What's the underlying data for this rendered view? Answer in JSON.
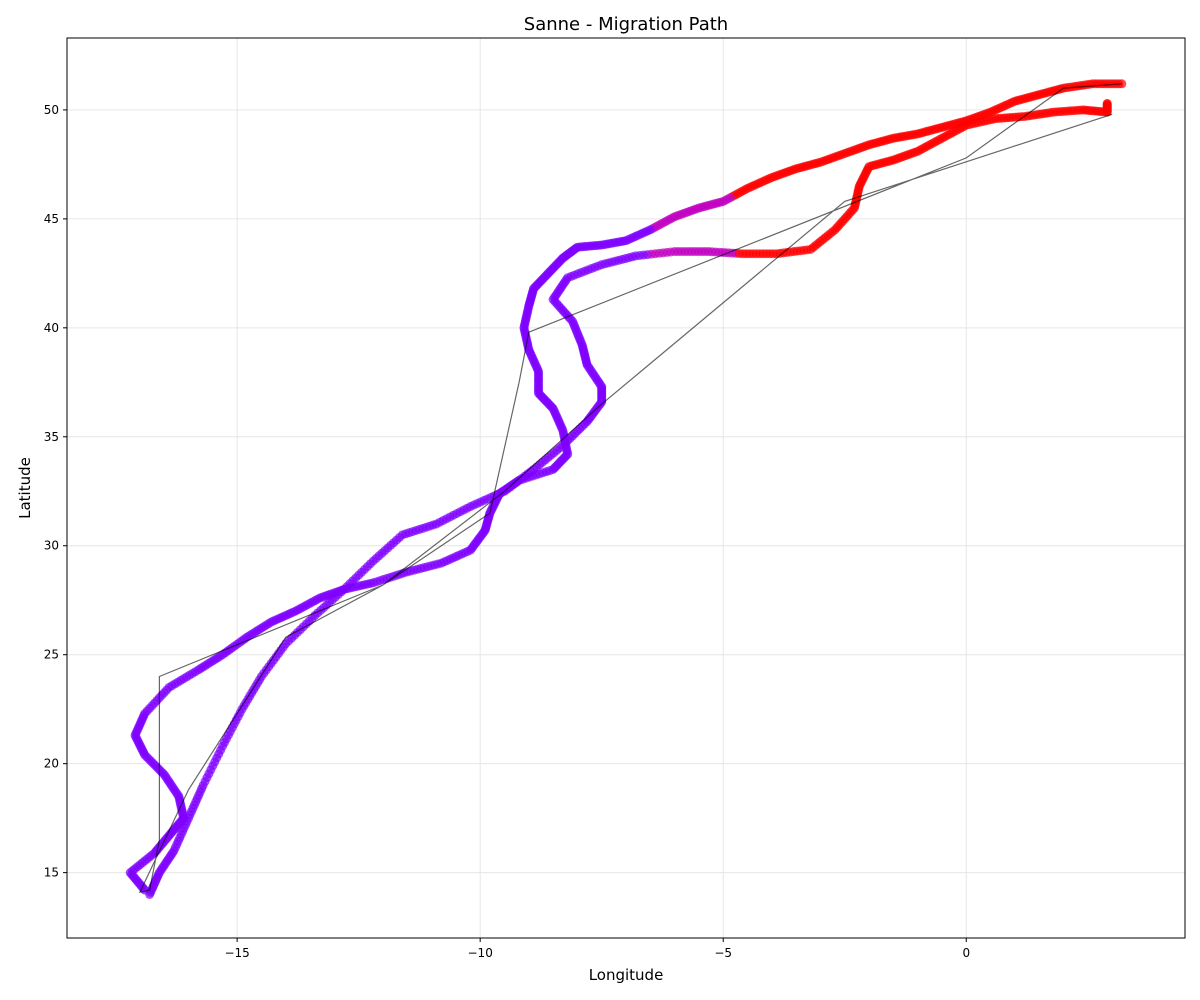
{
  "chart_data": {
    "type": "scatter",
    "title": "Sanne - Migration Path",
    "xlabel": "Longitude",
    "ylabel": "Latitude",
    "xlim": [
      -18.5,
      4.5
    ],
    "ylim": [
      12,
      53.3
    ],
    "xticks": [
      -15,
      -10,
      -5,
      0
    ],
    "yticks": [
      15,
      20,
      25,
      30,
      35,
      40,
      45,
      50
    ],
    "xtick_labels": [
      "−15",
      "−10",
      "−5",
      "0"
    ],
    "ytick_labels": [
      "15",
      "20",
      "25",
      "30",
      "35",
      "40",
      "45",
      "50"
    ],
    "grid": true,
    "legend": "none",
    "colors": {
      "north_points": "#ff0000",
      "south_points": "#7f00ff",
      "connecting_line": "#000000"
    },
    "series": [
      {
        "values_xy": [
          [
            3.2,
            51.2
          ],
          [
            2.6,
            51.2
          ],
          [
            2.0,
            51.0
          ],
          [
            1.5,
            50.7
          ],
          [
            1.0,
            50.4
          ],
          [
            0.5,
            49.9
          ],
          [
            0.0,
            49.5
          ],
          [
            -0.5,
            49.2
          ],
          [
            -1.0,
            48.9
          ],
          [
            -1.5,
            48.7
          ],
          [
            -2.0,
            48.4
          ],
          [
            -2.5,
            48.0
          ],
          [
            -3.0,
            47.6
          ],
          [
            -3.5,
            47.3
          ],
          [
            -4.0,
            46.9
          ],
          [
            -4.5,
            46.4
          ],
          [
            -5.0,
            45.8
          ],
          [
            -5.5,
            45.5
          ],
          [
            -6.0,
            45.1
          ],
          [
            -6.5,
            44.5
          ],
          [
            -7.0,
            44.0
          ],
          [
            -7.5,
            43.8
          ],
          [
            -8.0,
            43.7
          ],
          [
            -8.3,
            43.2
          ],
          [
            -8.6,
            42.5
          ],
          [
            -8.9,
            41.8
          ],
          [
            -9.0,
            41.0
          ],
          [
            -9.1,
            40.0
          ],
          [
            -9.0,
            39.0
          ],
          [
            -8.8,
            38.0
          ],
          [
            -8.8,
            37.0
          ],
          [
            -8.5,
            36.3
          ],
          [
            -8.3,
            35.3
          ],
          [
            -8.2,
            34.2
          ],
          [
            -8.5,
            33.5
          ],
          [
            -9.2,
            33.0
          ],
          [
            -9.6,
            32.4
          ],
          [
            -9.8,
            31.5
          ],
          [
            -9.9,
            30.7
          ],
          [
            -10.2,
            29.8
          ],
          [
            -10.8,
            29.2
          ],
          [
            -11.5,
            28.8
          ],
          [
            -12.2,
            28.3
          ],
          [
            -12.8,
            28.0
          ],
          [
            -13.3,
            27.6
          ],
          [
            -13.8,
            27.0
          ],
          [
            -14.3,
            26.5
          ],
          [
            -14.8,
            25.8
          ],
          [
            -15.3,
            25.0
          ],
          [
            -15.8,
            24.3
          ],
          [
            -16.4,
            23.5
          ],
          [
            -16.9,
            22.3
          ],
          [
            -17.1,
            21.3
          ],
          [
            -16.9,
            20.4
          ],
          [
            -16.5,
            19.5
          ],
          [
            -16.2,
            18.5
          ],
          [
            -16.1,
            17.5
          ],
          [
            -16.4,
            16.7
          ],
          [
            -16.7,
            15.9
          ],
          [
            -17.2,
            15.0
          ],
          [
            -16.9,
            14.2
          ]
        ]
      },
      {
        "values_xy": [
          [
            -16.8,
            14.0
          ],
          [
            -16.6,
            15.0
          ],
          [
            -16.3,
            16.0
          ],
          [
            -16.0,
            17.5
          ],
          [
            -15.7,
            19.0
          ],
          [
            -15.3,
            20.8
          ],
          [
            -14.9,
            22.5
          ],
          [
            -14.5,
            24.0
          ],
          [
            -14.0,
            25.5
          ],
          [
            -13.4,
            26.8
          ],
          [
            -12.8,
            28.0
          ],
          [
            -12.2,
            29.3
          ],
          [
            -11.6,
            30.5
          ],
          [
            -10.9,
            31.0
          ],
          [
            -10.2,
            31.8
          ],
          [
            -9.5,
            32.5
          ],
          [
            -8.9,
            33.5
          ],
          [
            -8.3,
            34.6
          ],
          [
            -7.8,
            35.7
          ],
          [
            -7.5,
            36.6
          ],
          [
            -7.5,
            37.3
          ],
          [
            -7.8,
            38.3
          ],
          [
            -7.9,
            39.2
          ],
          [
            -8.1,
            40.3
          ],
          [
            -8.5,
            41.3
          ],
          [
            -8.2,
            42.3
          ],
          [
            -7.5,
            42.9
          ],
          [
            -6.8,
            43.3
          ],
          [
            -6.0,
            43.5
          ],
          [
            -5.3,
            43.5
          ],
          [
            -4.6,
            43.4
          ],
          [
            -3.9,
            43.4
          ],
          [
            -3.2,
            43.6
          ],
          [
            -2.7,
            44.5
          ],
          [
            -2.3,
            45.5
          ],
          [
            -2.2,
            46.5
          ],
          [
            -2.0,
            47.4
          ],
          [
            -1.5,
            47.7
          ],
          [
            -1.0,
            48.1
          ],
          [
            -0.5,
            48.7
          ],
          [
            0.0,
            49.3
          ],
          [
            0.6,
            49.6
          ],
          [
            1.2,
            49.7
          ],
          [
            1.8,
            49.9
          ],
          [
            2.4,
            50.0
          ],
          [
            2.9,
            49.9
          ],
          [
            2.9,
            50.3
          ]
        ]
      }
    ],
    "connecting_line_xy": [
      [
        3.2,
        51.2
      ],
      [
        2.0,
        51.0
      ],
      [
        0.0,
        47.8
      ],
      [
        -9.0,
        39.8
      ],
      [
        -9.2,
        37.5
      ],
      [
        -9.8,
        31.5
      ],
      [
        -12.0,
        28.2
      ],
      [
        -16.6,
        24.0
      ],
      [
        -16.6,
        16.5
      ],
      [
        -16.8,
        14.2
      ],
      [
        -17.0,
        14.1
      ],
      [
        -16.0,
        18.8
      ],
      [
        -14.0,
        25.8
      ],
      [
        -12.0,
        28.2
      ],
      [
        -9.5,
        32.5
      ],
      [
        -7.5,
        36.5
      ],
      [
        -2.5,
        45.8
      ],
      [
        3.0,
        49.8
      ]
    ]
  }
}
